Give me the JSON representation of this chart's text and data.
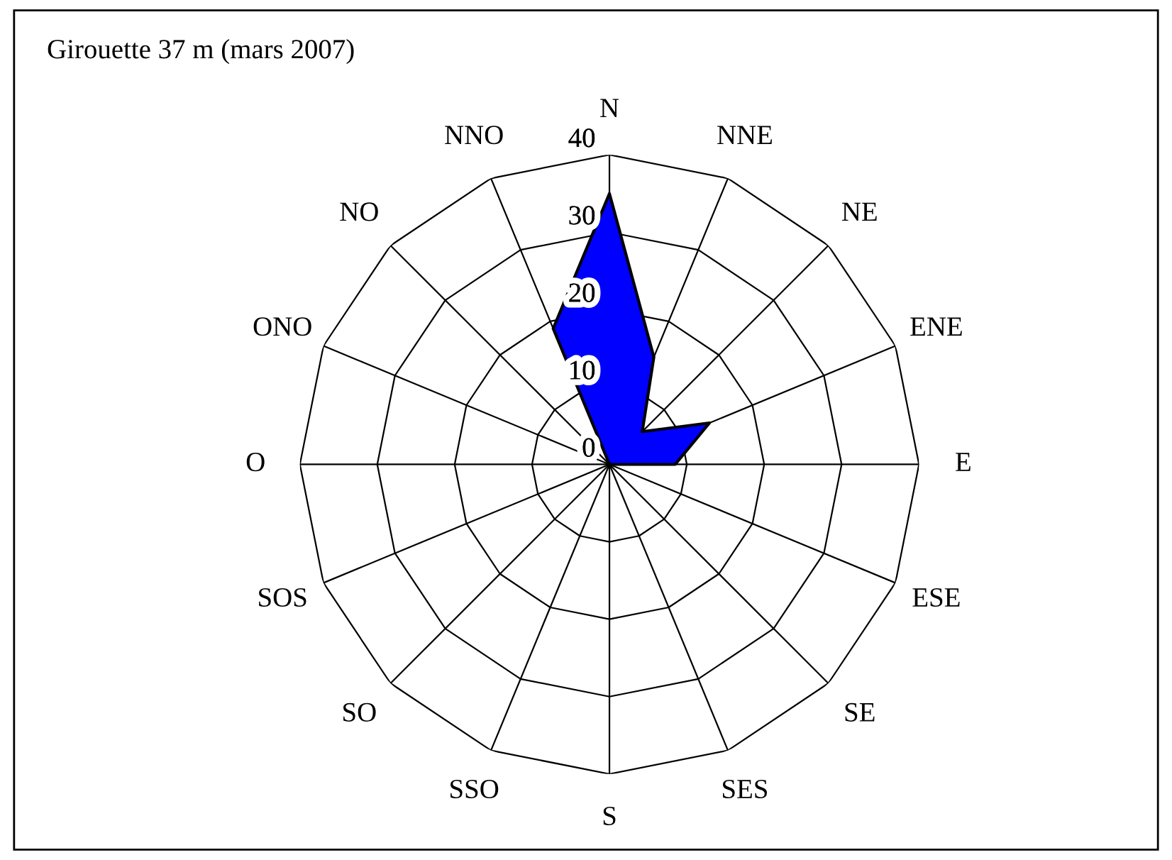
{
  "chart_data": {
    "type": "radar",
    "title": "Girouette 37 m (mars 2007)",
    "categories": [
      "N",
      "NNE",
      "NE",
      "ENE",
      "E",
      "ESE",
      "SE",
      "SES",
      "S",
      "SSO",
      "SO",
      "SOS",
      "O",
      "ONO",
      "NO",
      "NNO"
    ],
    "series": [
      {
        "color": "#0000ff",
        "values": [
          35,
          15,
          6,
          14,
          8.5,
          0,
          0,
          0,
          0,
          0,
          0,
          0,
          0,
          0,
          0,
          19
        ]
      }
    ],
    "ylim": [
      0,
      40
    ],
    "yticks": [
      0,
      10,
      20,
      30,
      40
    ],
    "grid": true
  }
}
